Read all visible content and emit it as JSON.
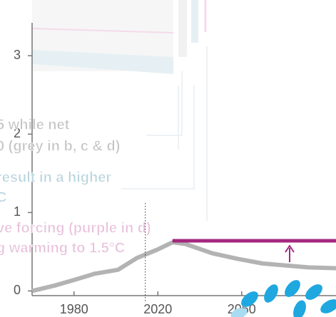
{
  "chart_data": {
    "type": "line",
    "x": [
      1960,
      1971,
      1980,
      1990,
      2001,
      2010,
      2020,
      2027,
      2033,
      2046,
      2058,
      2070,
      2092,
      2105
    ],
    "series": [
      {
        "color": "#b3b3b3",
        "values": [
          0,
          0.07,
          0.14,
          0.22,
          0.27,
          0.42,
          0.53,
          0.62,
          0.6,
          0.48,
          0.41,
          0.35,
          0.3,
          0.29
        ]
      },
      {
        "color": "#a3287f",
        "values": [
          null,
          null,
          null,
          null,
          null,
          null,
          null,
          0.64,
          0.64,
          0.64,
          0.64,
          0.64,
          0.64,
          0.64
        ]
      }
    ],
    "reference_x": 2014,
    "xlim": [
      1960,
      2105
    ],
    "ylim": [
      -0.06,
      3.42
    ],
    "xticks": [
      1980,
      2020,
      2060
    ],
    "yticks": [
      0,
      1,
      2,
      3
    ],
    "annotations": [
      {
        "text": "5 while net",
        "color": "#c4c4c4"
      },
      {
        "text": "0 (grey in b, c & d)",
        "color": "#c4c4c4"
      },
      {
        "text": "result in a higher",
        "color": "#b9d5de"
      },
      {
        "text": "C",
        "color": "#b9d5de"
      },
      {
        "text": "ve forcing (purple in d)",
        "color": "#e8c2dc"
      },
      {
        "text": "g warming to 1.5°C",
        "color": "#e8c2dc"
      }
    ]
  }
}
